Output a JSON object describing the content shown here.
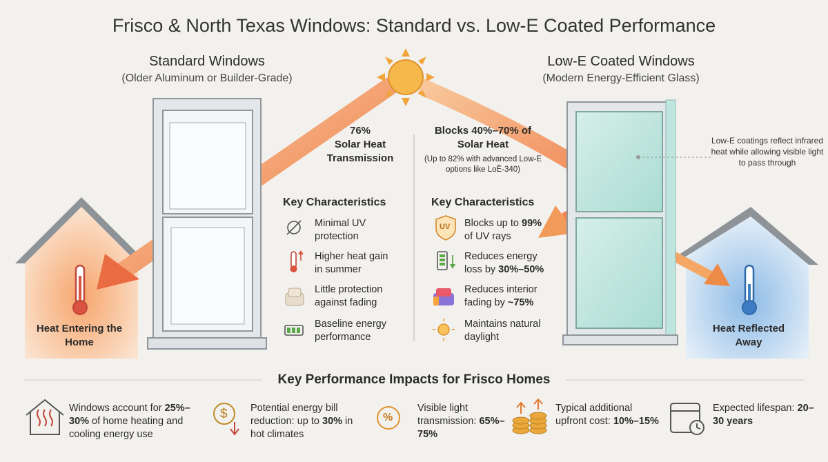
{
  "title": "Frisco & North Texas Windows: Standard vs. Low-E Coated Performance",
  "standard": {
    "heading": "Standard Windows",
    "subheading": "(Older Aluminum or Builder-Grade)",
    "stat": "76%",
    "stat_label": "Solar Heat Transmission",
    "key_heading": "Key Characteristics",
    "items": [
      [
        "Minimal UV protection"
      ],
      [
        "Higher heat gain in summer"
      ],
      [
        "Little protection against fading"
      ],
      [
        "Baseline energy performance"
      ]
    ],
    "house_label": "Heat Entering the Home"
  },
  "lowe": {
    "heading": "Low-E Coated Windows",
    "subheading": "(Modern Energy-Efficient Glass)",
    "stat": "Blocks 40%–70% of Solar Heat",
    "stat_note": "(Up to 82% with advanced Low-E options like LoĒ-340)",
    "callout": "Low-E coatings reflect infrared heat while allowing visible light to pass through",
    "key_heading": "Key Characteristics",
    "uv_icon": "UV",
    "items": [
      [
        "Blocks up to ",
        "99%",
        " of UV rays"
      ],
      [
        "Reduces energy loss by ",
        "30%–50%"
      ],
      [
        "Reduces interior fading by ",
        "~75%"
      ],
      [
        "Maintains natural daylight"
      ]
    ],
    "house_label": "Heat Reflected Away"
  },
  "impacts": {
    "heading": "Key Performance Impacts for Frisco Homes",
    "dollar_icon": "$",
    "percent_icon": "%",
    "items": [
      [
        "Windows account for ",
        "25%–30%",
        " of home heating and cooling energy use"
      ],
      [
        "Potential energy bill reduction: up to ",
        "30%",
        " in hot climates"
      ],
      [
        "Visible light transmission: ",
        "65%–75%"
      ],
      [
        "Typical additional upfront cost: ",
        "10%–15%"
      ],
      [
        "Expected lifespan: ",
        "20–30 years"
      ]
    ]
  }
}
